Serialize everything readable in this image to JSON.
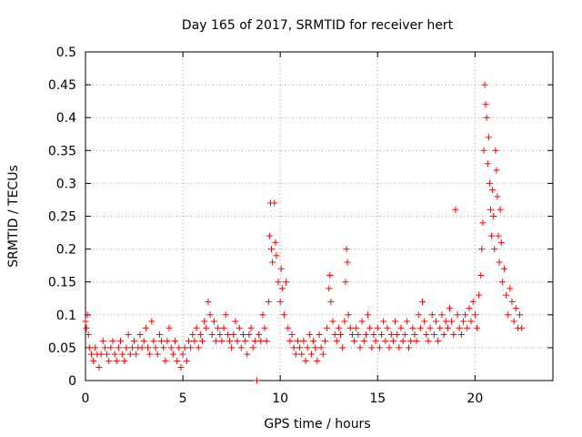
{
  "chart_data": {
    "type": "scatter",
    "title": "Day 165 of 2017, SRMTID for receiver hert",
    "xlabel": "GPS time / hours",
    "ylabel": "SRMTID / TECUs",
    "xlim": [
      0,
      24
    ],
    "ylim": [
      0,
      0.5
    ],
    "x_ticks": [
      0,
      5,
      10,
      15,
      20
    ],
    "x_tick_labels": [
      "0",
      "5",
      "10",
      "15",
      "20"
    ],
    "y_ticks": [
      0,
      0.05,
      0.1,
      0.15,
      0.2,
      0.25,
      0.3,
      0.35,
      0.4,
      0.45,
      0.5
    ],
    "y_tick_labels": [
      "0",
      "0.05",
      "0.1",
      "0.15",
      "0.2",
      "0.25",
      "0.3",
      "0.35",
      "0.4",
      "0.45",
      "0.5"
    ],
    "grid": true,
    "marker": "plus",
    "color": "#ff0000",
    "series": [
      {
        "name": "SRMTID",
        "points": [
          [
            0.0,
            0.09
          ],
          [
            0.05,
            0.08
          ],
          [
            0.1,
            0.1
          ],
          [
            0.15,
            0.07
          ],
          [
            0.2,
            0.05
          ],
          [
            0.3,
            0.04
          ],
          [
            0.4,
            0.03
          ],
          [
            0.5,
            0.05
          ],
          [
            0.6,
            0.04
          ],
          [
            0.7,
            0.02
          ],
          [
            0.8,
            0.04
          ],
          [
            0.9,
            0.06
          ],
          [
            1.0,
            0.05
          ],
          [
            1.1,
            0.04
          ],
          [
            1.2,
            0.03
          ],
          [
            1.3,
            0.05
          ],
          [
            1.4,
            0.06
          ],
          [
            1.5,
            0.04
          ],
          [
            1.6,
            0.03
          ],
          [
            1.7,
            0.05
          ],
          [
            1.8,
            0.06
          ],
          [
            1.9,
            0.04
          ],
          [
            2.0,
            0.03
          ],
          [
            2.1,
            0.05
          ],
          [
            2.2,
            0.07
          ],
          [
            2.3,
            0.04
          ],
          [
            2.4,
            0.05
          ],
          [
            2.5,
            0.06
          ],
          [
            2.6,
            0.04
          ],
          [
            2.7,
            0.05
          ],
          [
            2.8,
            0.07
          ],
          [
            2.9,
            0.05
          ],
          [
            3.0,
            0.06
          ],
          [
            3.1,
            0.08
          ],
          [
            3.2,
            0.05
          ],
          [
            3.3,
            0.04
          ],
          [
            3.4,
            0.09
          ],
          [
            3.5,
            0.06
          ],
          [
            3.6,
            0.05
          ],
          [
            3.7,
            0.04
          ],
          [
            3.8,
            0.07
          ],
          [
            3.9,
            0.06
          ],
          [
            4.0,
            0.05
          ],
          [
            4.1,
            0.03
          ],
          [
            4.2,
            0.06
          ],
          [
            4.3,
            0.08
          ],
          [
            4.4,
            0.05
          ],
          [
            4.5,
            0.04
          ],
          [
            4.6,
            0.06
          ],
          [
            4.7,
            0.03
          ],
          [
            4.8,
            0.05
          ],
          [
            4.9,
            0.02
          ],
          [
            5.0,
            0.04
          ],
          [
            5.1,
            0.05
          ],
          [
            5.2,
            0.03
          ],
          [
            5.3,
            0.06
          ],
          [
            5.4,
            0.05
          ],
          [
            5.5,
            0.07
          ],
          [
            5.6,
            0.06
          ],
          [
            5.7,
            0.08
          ],
          [
            5.8,
            0.05
          ],
          [
            5.9,
            0.07
          ],
          [
            6.0,
            0.06
          ],
          [
            6.1,
            0.09
          ],
          [
            6.2,
            0.08
          ],
          [
            6.3,
            0.12
          ],
          [
            6.4,
            0.1
          ],
          [
            6.5,
            0.07
          ],
          [
            6.6,
            0.09
          ],
          [
            6.7,
            0.06
          ],
          [
            6.8,
            0.08
          ],
          [
            6.9,
            0.07
          ],
          [
            7.0,
            0.06
          ],
          [
            7.1,
            0.08
          ],
          [
            7.2,
            0.1
          ],
          [
            7.3,
            0.07
          ],
          [
            7.4,
            0.06
          ],
          [
            7.5,
            0.05
          ],
          [
            7.6,
            0.07
          ],
          [
            7.7,
            0.09
          ],
          [
            7.8,
            0.06
          ],
          [
            7.9,
            0.08
          ],
          [
            8.0,
            0.05
          ],
          [
            8.1,
            0.07
          ],
          [
            8.2,
            0.06
          ],
          [
            8.3,
            0.04
          ],
          [
            8.4,
            0.07
          ],
          [
            8.5,
            0.08
          ],
          [
            8.6,
            0.05
          ],
          [
            8.7,
            0.06
          ],
          [
            8.8,
            0.0
          ],
          [
            8.9,
            0.07
          ],
          [
            9.0,
            0.06
          ],
          [
            9.1,
            0.1
          ],
          [
            9.2,
            0.08
          ],
          [
            9.3,
            0.06
          ],
          [
            9.4,
            0.12
          ],
          [
            9.45,
            0.22
          ],
          [
            9.5,
            0.27
          ],
          [
            9.55,
            0.2
          ],
          [
            9.6,
            0.18
          ],
          [
            9.7,
            0.27
          ],
          [
            9.75,
            0.21
          ],
          [
            9.8,
            0.19
          ],
          [
            9.9,
            0.15
          ],
          [
            10.0,
            0.12
          ],
          [
            10.05,
            0.17
          ],
          [
            10.1,
            0.14
          ],
          [
            10.2,
            0.1
          ],
          [
            10.3,
            0.15
          ],
          [
            10.4,
            0.08
          ],
          [
            10.5,
            0.06
          ],
          [
            10.6,
            0.07
          ],
          [
            10.7,
            0.05
          ],
          [
            10.8,
            0.04
          ],
          [
            10.9,
            0.06
          ],
          [
            11.0,
            0.05
          ],
          [
            11.1,
            0.04
          ],
          [
            11.2,
            0.06
          ],
          [
            11.3,
            0.03
          ],
          [
            11.4,
            0.05
          ],
          [
            11.5,
            0.07
          ],
          [
            11.6,
            0.04
          ],
          [
            11.7,
            0.06
          ],
          [
            11.8,
            0.05
          ],
          [
            11.9,
            0.03
          ],
          [
            12.0,
            0.07
          ],
          [
            12.1,
            0.05
          ],
          [
            12.2,
            0.04
          ],
          [
            12.3,
            0.06
          ],
          [
            12.4,
            0.08
          ],
          [
            12.5,
            0.14
          ],
          [
            12.55,
            0.16
          ],
          [
            12.6,
            0.12
          ],
          [
            12.7,
            0.09
          ],
          [
            12.8,
            0.07
          ],
          [
            12.9,
            0.06
          ],
          [
            13.0,
            0.08
          ],
          [
            13.1,
            0.07
          ],
          [
            13.2,
            0.05
          ],
          [
            13.3,
            0.09
          ],
          [
            13.35,
            0.15
          ],
          [
            13.4,
            0.2
          ],
          [
            13.45,
            0.18
          ],
          [
            13.5,
            0.1
          ],
          [
            13.6,
            0.08
          ],
          [
            13.7,
            0.07
          ],
          [
            13.8,
            0.06
          ],
          [
            13.9,
            0.08
          ],
          [
            14.0,
            0.07
          ],
          [
            14.1,
            0.05
          ],
          [
            14.2,
            0.09
          ],
          [
            14.3,
            0.06
          ],
          [
            14.4,
            0.07
          ],
          [
            14.5,
            0.1
          ],
          [
            14.6,
            0.08
          ],
          [
            14.7,
            0.05
          ],
          [
            14.8,
            0.07
          ],
          [
            14.9,
            0.06
          ],
          [
            15.0,
            0.08
          ],
          [
            15.1,
            0.05
          ],
          [
            15.2,
            0.07
          ],
          [
            15.3,
            0.09
          ],
          [
            15.4,
            0.06
          ],
          [
            15.5,
            0.08
          ],
          [
            15.6,
            0.05
          ],
          [
            15.7,
            0.07
          ],
          [
            15.8,
            0.06
          ],
          [
            15.9,
            0.09
          ],
          [
            16.0,
            0.07
          ],
          [
            16.1,
            0.05
          ],
          [
            16.2,
            0.08
          ],
          [
            16.3,
            0.06
          ],
          [
            16.4,
            0.07
          ],
          [
            16.5,
            0.09
          ],
          [
            16.6,
            0.05
          ],
          [
            16.7,
            0.06
          ],
          [
            16.8,
            0.08
          ],
          [
            16.9,
            0.07
          ],
          [
            17.0,
            0.06
          ],
          [
            17.1,
            0.1
          ],
          [
            17.2,
            0.08
          ],
          [
            17.3,
            0.12
          ],
          [
            17.4,
            0.09
          ],
          [
            17.5,
            0.07
          ],
          [
            17.6,
            0.06
          ],
          [
            17.7,
            0.08
          ],
          [
            17.8,
            0.1
          ],
          [
            17.9,
            0.07
          ],
          [
            18.0,
            0.09
          ],
          [
            18.1,
            0.06
          ],
          [
            18.2,
            0.08
          ],
          [
            18.3,
            0.1
          ],
          [
            18.4,
            0.07
          ],
          [
            18.5,
            0.09
          ],
          [
            18.6,
            0.08
          ],
          [
            18.7,
            0.11
          ],
          [
            18.8,
            0.09
          ],
          [
            18.9,
            0.07
          ],
          [
            19.0,
            0.26
          ],
          [
            19.1,
            0.1
          ],
          [
            19.2,
            0.08
          ],
          [
            19.3,
            0.07
          ],
          [
            19.4,
            0.09
          ],
          [
            19.5,
            0.1
          ],
          [
            19.6,
            0.08
          ],
          [
            19.7,
            0.11
          ],
          [
            19.8,
            0.09
          ],
          [
            19.9,
            0.12
          ],
          [
            20.0,
            0.1
          ],
          [
            20.1,
            0.08
          ],
          [
            20.2,
            0.13
          ],
          [
            20.3,
            0.16
          ],
          [
            20.35,
            0.2
          ],
          [
            20.4,
            0.24
          ],
          [
            20.45,
            0.35
          ],
          [
            20.5,
            0.45
          ],
          [
            20.55,
            0.42
          ],
          [
            20.6,
            0.4
          ],
          [
            20.65,
            0.33
          ],
          [
            20.7,
            0.37
          ],
          [
            20.75,
            0.3
          ],
          [
            20.8,
            0.26
          ],
          [
            20.85,
            0.22
          ],
          [
            20.9,
            0.29
          ],
          [
            20.95,
            0.25
          ],
          [
            21.0,
            0.2
          ],
          [
            21.05,
            0.35
          ],
          [
            21.1,
            0.32
          ],
          [
            21.15,
            0.28
          ],
          [
            21.2,
            0.22
          ],
          [
            21.25,
            0.18
          ],
          [
            21.3,
            0.26
          ],
          [
            21.35,
            0.21
          ],
          [
            21.4,
            0.15
          ],
          [
            21.5,
            0.17
          ],
          [
            21.6,
            0.13
          ],
          [
            21.7,
            0.1
          ],
          [
            21.8,
            0.14
          ],
          [
            21.9,
            0.12
          ],
          [
            22.0,
            0.09
          ],
          [
            22.1,
            0.11
          ],
          [
            22.2,
            0.08
          ],
          [
            22.3,
            0.1
          ],
          [
            22.4,
            0.08
          ]
        ]
      }
    ]
  }
}
